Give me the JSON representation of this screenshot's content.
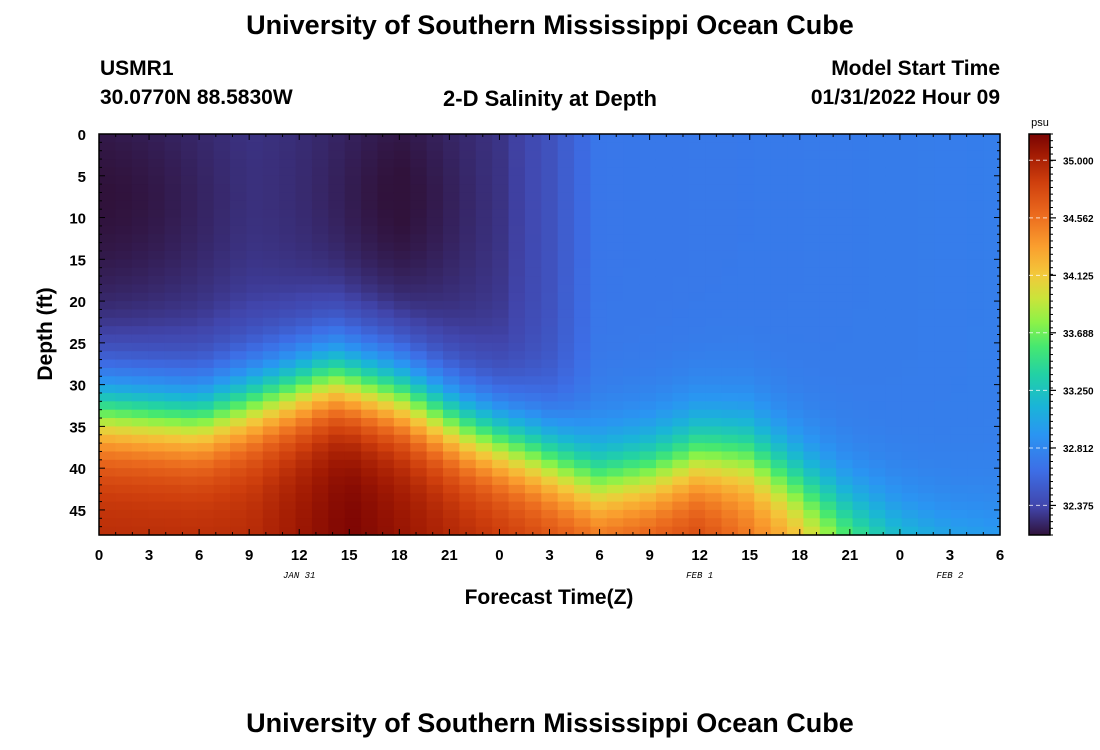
{
  "page": {
    "title_top": "University of Southern Mississippi Ocean Cube",
    "title_bottom": "University of Southern Mississippi Ocean Cube"
  },
  "header": {
    "station_id": "USMR1",
    "location": "30.0770N  88.5830W",
    "plot_title": "2-D Salinity at Depth",
    "model_start_label": "Model Start Time",
    "model_start_value": "01/31/2022 Hour 09"
  },
  "chart_data": {
    "type": "heatmap",
    "title": "2-D Salinity at Depth",
    "xlabel": "Forecast Time(Z)",
    "ylabel": "Depth (ft)",
    "x_range_hours": [
      0,
      54
    ],
    "ylim": [
      0,
      48
    ],
    "x_tick_labels": [
      "0",
      "3",
      "6",
      "9",
      "12",
      "15",
      "18",
      "21",
      "0",
      "3",
      "6",
      "9",
      "12",
      "15",
      "18",
      "21",
      "0",
      "3",
      "6"
    ],
    "x_tick_hours": [
      0,
      3,
      6,
      9,
      12,
      15,
      18,
      21,
      24,
      27,
      30,
      33,
      36,
      39,
      42,
      45,
      48,
      51,
      54
    ],
    "y_tick_labels": [
      "0",
      "5",
      "10",
      "15",
      "20",
      "25",
      "30",
      "35",
      "40",
      "45"
    ],
    "y_ticks": [
      0,
      5,
      10,
      15,
      20,
      25,
      30,
      35,
      40,
      45
    ],
    "date_labels": [
      {
        "text": "JAN 31",
        "hour": 12
      },
      {
        "text": "FEB 1",
        "hour": 36
      },
      {
        "text": "FEB 2",
        "hour": 51
      }
    ],
    "colorbar": {
      "unit": "psu",
      "min": 32.15,
      "max": 35.2,
      "tick_values": [
        35.0,
        34.562,
        34.125,
        33.688,
        33.25,
        32.812,
        32.375
      ],
      "tick_labels": [
        "35.000",
        "34.562",
        "34.125",
        "33.688",
        "33.250",
        "32.812",
        "32.375"
      ]
    },
    "field_description": "Approximate salinity profile (psu) vs. forecast hour and depth",
    "surface_salinity": [
      {
        "hour": 0,
        "value": 32.22
      },
      {
        "hour": 9,
        "value": 32.3
      },
      {
        "hour": 18,
        "value": 32.22
      },
      {
        "hour": 24,
        "value": 32.3
      },
      {
        "hour": 27,
        "value": 32.45
      },
      {
        "hour": 30,
        "value": 32.7
      },
      {
        "hour": 54,
        "value": 32.75
      }
    ],
    "halocline_depth_ft": [
      {
        "hour": 0,
        "value": 33
      },
      {
        "hour": 6,
        "value": 34
      },
      {
        "hour": 10,
        "value": 31.5
      },
      {
        "hour": 14,
        "value": 29
      },
      {
        "hour": 18,
        "value": 31
      },
      {
        "hour": 22,
        "value": 35
      },
      {
        "hour": 26,
        "value": 38
      },
      {
        "hour": 30,
        "value": 41.5
      },
      {
        "hour": 33,
        "value": 40.5
      },
      {
        "hour": 36,
        "value": 38.5
      },
      {
        "hour": 39,
        "value": 38.5
      },
      {
        "hour": 42,
        "value": 42
      },
      {
        "hour": 45,
        "value": 45.5
      },
      {
        "hour": 48,
        "value": 47.5
      },
      {
        "hour": 51,
        "value": 48.5
      },
      {
        "hour": 54,
        "value": 47.5
      }
    ],
    "bottom_max_salinity": [
      {
        "hour": 0,
        "value": 34.95
      },
      {
        "hour": 9,
        "value": 34.95
      },
      {
        "hour": 15,
        "value": 35.2
      },
      {
        "hour": 21,
        "value": 35.0
      },
      {
        "hour": 30,
        "value": 34.75
      },
      {
        "hour": 36,
        "value": 34.85
      },
      {
        "hour": 42,
        "value": 34.35
      },
      {
        "hour": 48,
        "value": 33.55
      },
      {
        "hour": 54,
        "value": 33.1
      }
    ]
  }
}
